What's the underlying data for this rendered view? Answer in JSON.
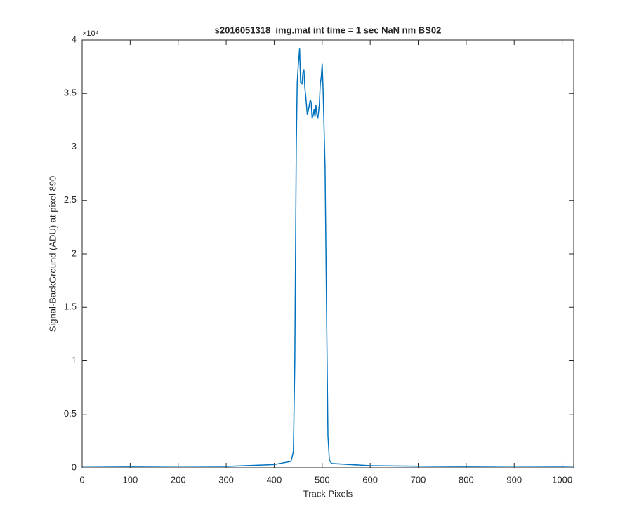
{
  "chart_data": {
    "type": "line",
    "title": "s2016051318_img.mat int time = 1 sec  NaN nm BS02",
    "x_label": "Track Pixels",
    "y_label": "Signal-BackGround (ADU) at pixel 890",
    "y_exponent_label": "×10⁴",
    "x": [
      0,
      100,
      200,
      300,
      400,
      435,
      440,
      443,
      446,
      448,
      450,
      453,
      455,
      458,
      460,
      462,
      464,
      466,
      469,
      472,
      475,
      477,
      479,
      481,
      483,
      485,
      487,
      489,
      491,
      494,
      496,
      498,
      500,
      502,
      506,
      509,
      512,
      515,
      520,
      600,
      700,
      800,
      900,
      1000,
      1023
    ],
    "series": [
      {
        "color": "#0072bd",
        "values": [
          150,
          120,
          150,
          130,
          300,
          600,
          1500,
          10000,
          30000,
          36000,
          37500,
          39200,
          36000,
          35900,
          37000,
          37200,
          35500,
          34600,
          33000,
          33600,
          34400,
          34200,
          32700,
          32900,
          33500,
          32800,
          33900,
          33000,
          32700,
          33900,
          35900,
          36500,
          37800,
          35200,
          28000,
          15000,
          3000,
          700,
          400,
          200,
          150,
          120,
          150,
          130,
          150
        ]
      }
    ],
    "xlim": [
      0,
      1024
    ],
    "xticks": [
      0,
      100,
      200,
      300,
      400,
      500,
      600,
      700,
      800,
      900,
      1000
    ],
    "ylim": [
      0,
      40000
    ],
    "yticks": [
      0,
      {
        "value": 5000,
        "label": "0.5"
      },
      {
        "value": 10000,
        "label": "1"
      },
      {
        "value": 15000,
        "label": "1.5"
      },
      {
        "value": 20000,
        "label": "2"
      },
      {
        "value": 25000,
        "label": "2.5"
      },
      {
        "value": 30000,
        "label": "3"
      },
      {
        "value": 35000,
        "label": "3.5"
      },
      {
        "value": 40000,
        "label": "4"
      }
    ],
    "grid": false
  }
}
